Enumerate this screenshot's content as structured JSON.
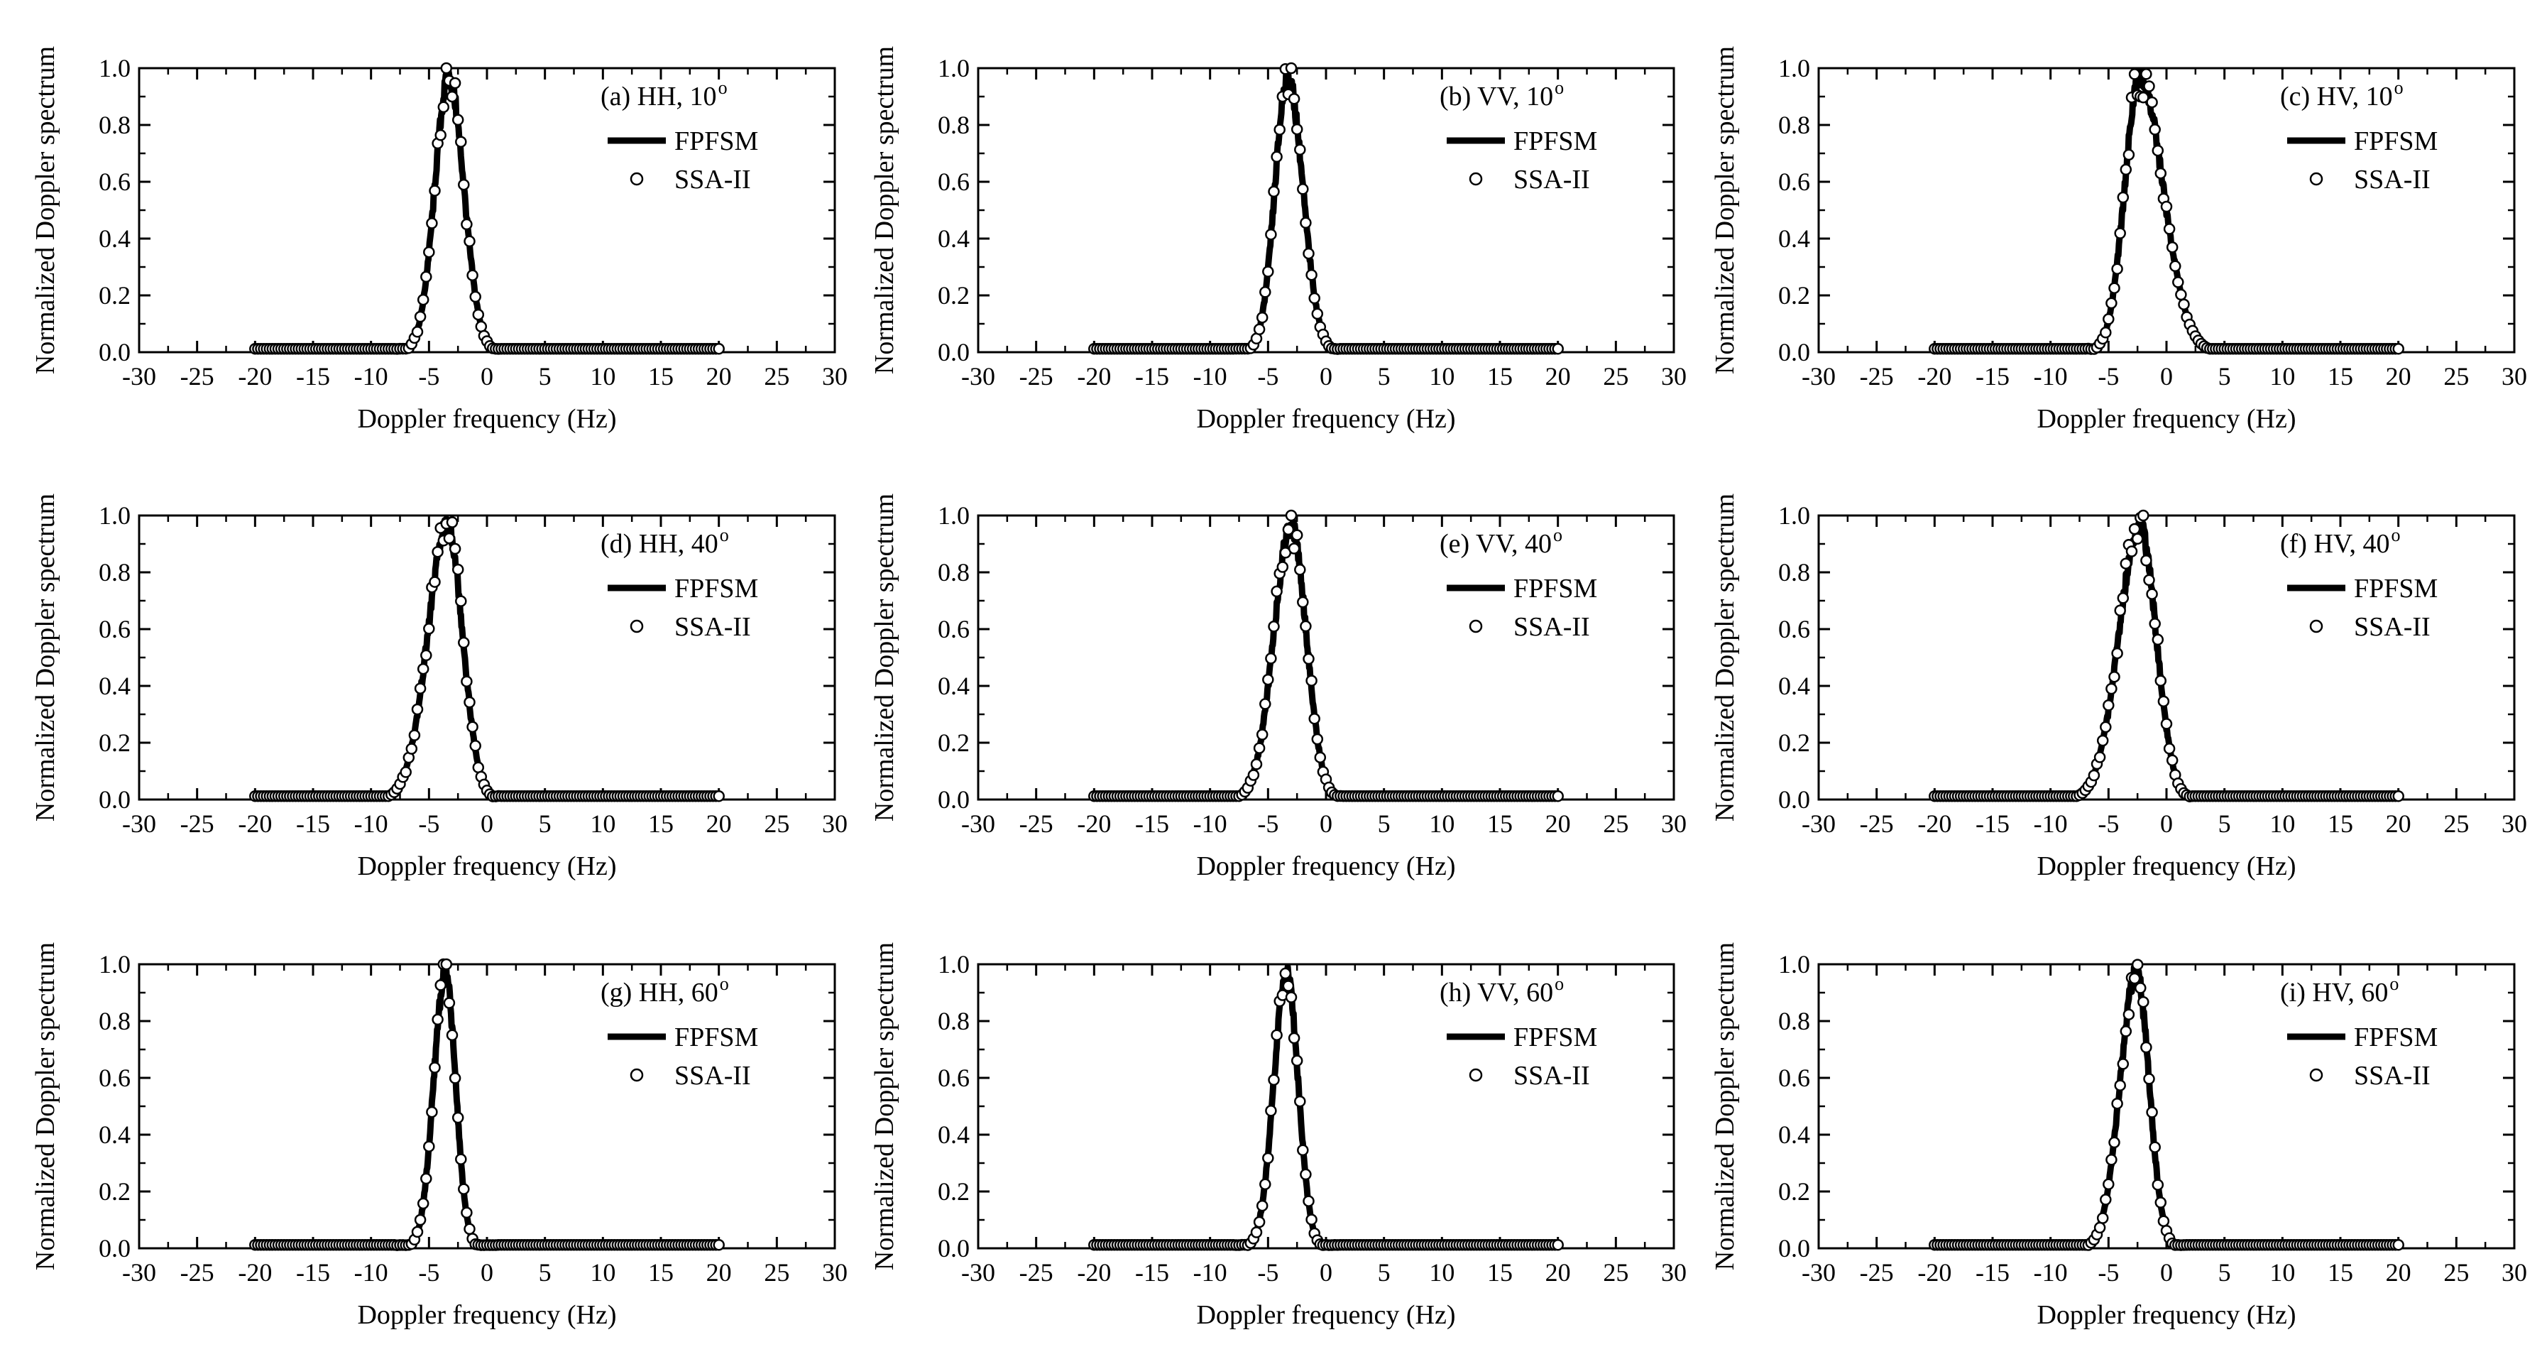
{
  "figure": {
    "common": {
      "xlabel": "Doppler frequency (Hz)",
      "ylabel": "Normalized Doppler spectrum",
      "xlim": [
        -30,
        30
      ],
      "ylim": [
        0,
        1
      ],
      "xticks": [
        "-30",
        "-25",
        "-20",
        "-15",
        "-10",
        "-5",
        "0",
        "5",
        "10",
        "15",
        "20",
        "25",
        "30"
      ],
      "yticks": [
        "0.0",
        "0.2",
        "0.4",
        "0.6",
        "0.8",
        "1.0"
      ],
      "legend": [
        "FPFSM",
        "SSA-II"
      ],
      "legend_placement": "top-right"
    }
  },
  "chart_data": [
    {
      "type": "line",
      "panel": "a",
      "title_prefix": "(a) HH, 10",
      "title_sup": "o",
      "xlabel": "Doppler frequency (Hz)",
      "ylabel": "Normalized Doppler spectrum",
      "xlim": [
        -30,
        30
      ],
      "ylim": [
        0,
        1
      ],
      "grid": false,
      "legend": [
        "FPFSM",
        "SSA-II"
      ],
      "peak": -3.3,
      "sigma_left": 1.2,
      "sigma_right": 1.3,
      "floor": 0.012,
      "x_range": [
        -20,
        20
      ],
      "series": [
        {
          "name": "FPFSM",
          "style": "line"
        },
        {
          "name": "SSA-II",
          "style": "markers"
        }
      ]
    },
    {
      "type": "line",
      "panel": "b",
      "title_prefix": "(b) VV, 10",
      "title_sup": "o",
      "xlabel": "Doppler frequency (Hz)",
      "ylabel": "Normalized Doppler spectrum",
      "xlim": [
        -30,
        30
      ],
      "ylim": [
        0,
        1
      ],
      "grid": false,
      "legend": [
        "FPFSM",
        "SSA-II"
      ],
      "peak": -3.3,
      "sigma_left": 1.1,
      "sigma_right": 1.3,
      "floor": 0.012,
      "x_range": [
        -20,
        20
      ],
      "series": [
        {
          "name": "FPFSM",
          "style": "line"
        },
        {
          "name": "SSA-II",
          "style": "markers"
        }
      ]
    },
    {
      "type": "line",
      "panel": "c",
      "title_prefix": "(c) HV, 10",
      "title_sup": "o",
      "xlabel": "Doppler frequency (Hz)",
      "ylabel": "Normalized Doppler spectrum",
      "xlim": [
        -30,
        30
      ],
      "ylim": [
        0,
        1
      ],
      "grid": false,
      "legend": [
        "FPFSM",
        "SSA-II"
      ],
      "peak": -2.3,
      "sigma_left": 1.3,
      "sigma_right": 2.0,
      "floor": 0.012,
      "x_range": [
        -20,
        20
      ],
      "series": [
        {
          "name": "FPFSM",
          "style": "line"
        },
        {
          "name": "SSA-II",
          "style": "markers"
        }
      ]
    },
    {
      "type": "line",
      "panel": "d",
      "title_prefix": "(d) HH, 40",
      "title_sup": "o",
      "xlabel": "Doppler frequency (Hz)",
      "ylabel": "Normalized Doppler spectrum",
      "xlim": [
        -30,
        30
      ],
      "ylim": [
        0,
        1
      ],
      "grid": false,
      "legend": [
        "FPFSM",
        "SSA-II"
      ],
      "peak": -3.4,
      "sigma_left": 1.7,
      "sigma_right": 1.3,
      "floor": 0.012,
      "x_range": [
        -20,
        20
      ],
      "series": [
        {
          "name": "FPFSM",
          "style": "line"
        },
        {
          "name": "SSA-II",
          "style": "markers"
        }
      ]
    },
    {
      "type": "line",
      "panel": "e",
      "title_prefix": "(e) VV, 40",
      "title_sup": "o",
      "xlabel": "Doppler frequency (Hz)",
      "ylabel": "Normalized Doppler spectrum",
      "xlim": [
        -30,
        30
      ],
      "ylim": [
        0,
        1
      ],
      "grid": false,
      "legend": [
        "FPFSM",
        "SSA-II"
      ],
      "peak": -3.0,
      "sigma_left": 1.5,
      "sigma_right": 1.3,
      "floor": 0.012,
      "x_range": [
        -20,
        20
      ],
      "series": [
        {
          "name": "FPFSM",
          "style": "line"
        },
        {
          "name": "SSA-II",
          "style": "markers"
        }
      ]
    },
    {
      "type": "line",
      "panel": "f",
      "title_prefix": "(f) HV, 40",
      "title_sup": "o",
      "xlabel": "Doppler frequency (Hz)",
      "ylabel": "Normalized Doppler spectrum",
      "xlim": [
        -30,
        30
      ],
      "ylim": [
        0,
        1
      ],
      "grid": false,
      "legend": [
        "FPFSM",
        "SSA-II"
      ],
      "peak": -2.3,
      "sigma_left": 1.8,
      "sigma_right": 1.4,
      "floor": 0.012,
      "x_range": [
        -20,
        20
      ],
      "series": [
        {
          "name": "FPFSM",
          "style": "line"
        },
        {
          "name": "SSA-II",
          "style": "markers"
        }
      ]
    },
    {
      "type": "line",
      "panel": "g",
      "title_prefix": "(g) HH, 60",
      "title_sup": "o",
      "xlabel": "Doppler frequency (Hz)",
      "ylabel": "Normalized Doppler spectrum",
      "xlim": [
        -30,
        30
      ],
      "ylim": [
        0,
        1
      ],
      "grid": false,
      "legend": [
        "FPFSM",
        "SSA-II"
      ],
      "peak": -3.6,
      "sigma_left": 1.0,
      "sigma_right": 0.9,
      "floor": 0.012,
      "x_range": [
        -20,
        20
      ],
      "series": [
        {
          "name": "FPFSM",
          "style": "line"
        },
        {
          "name": "SSA-II",
          "style": "markers"
        }
      ]
    },
    {
      "type": "line",
      "panel": "h",
      "title_prefix": "(h) VV, 60",
      "title_sup": "o",
      "xlabel": "Doppler frequency (Hz)",
      "ylabel": "Normalized Doppler spectrum",
      "xlim": [
        -30,
        30
      ],
      "ylim": [
        0,
        1
      ],
      "grid": false,
      "legend": [
        "FPFSM",
        "SSA-II"
      ],
      "peak": -3.4,
      "sigma_left": 1.1,
      "sigma_right": 1.0,
      "floor": 0.012,
      "x_range": [
        -20,
        20
      ],
      "series": [
        {
          "name": "FPFSM",
          "style": "line"
        },
        {
          "name": "SSA-II",
          "style": "markers"
        }
      ]
    },
    {
      "type": "line",
      "panel": "i",
      "title_prefix": "(i) HV, 60",
      "title_sup": "o",
      "xlabel": "Doppler frequency (Hz)",
      "ylabel": "Normalized Doppler spectrum",
      "xlim": [
        -30,
        30
      ],
      "ylim": [
        0,
        1
      ],
      "grid": false,
      "legend": [
        "FPFSM",
        "SSA-II"
      ],
      "peak": -2.6,
      "sigma_left": 1.4,
      "sigma_right": 1.1,
      "floor": 0.012,
      "x_range": [
        -20,
        20
      ],
      "series": [
        {
          "name": "FPFSM",
          "style": "line"
        },
        {
          "name": "SSA-II",
          "style": "markers"
        }
      ]
    }
  ]
}
